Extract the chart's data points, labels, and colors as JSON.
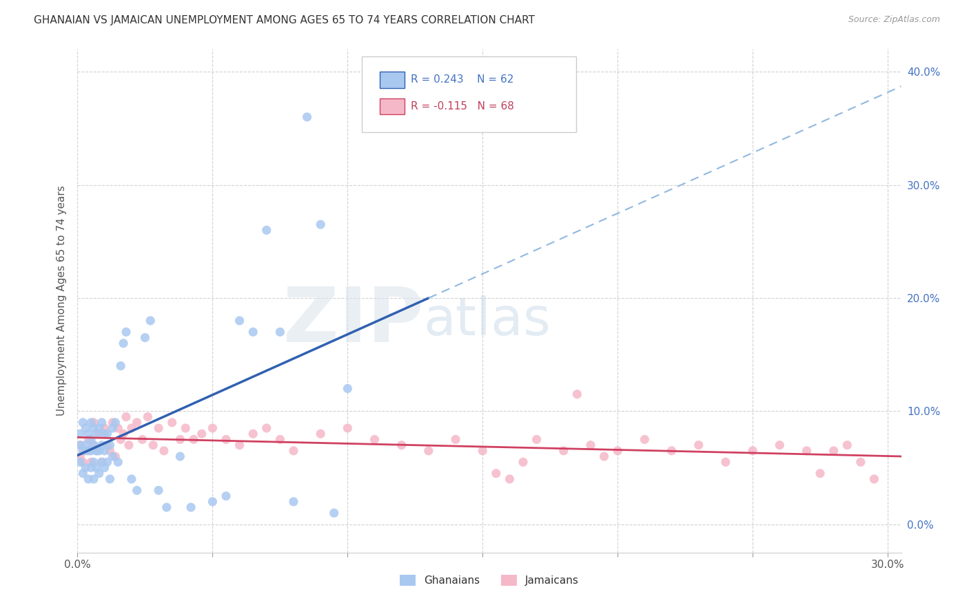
{
  "title": "GHANAIAN VS JAMAICAN UNEMPLOYMENT AMONG AGES 65 TO 74 YEARS CORRELATION CHART",
  "source": "Source: ZipAtlas.com",
  "ylabel": "Unemployment Among Ages 65 to 74 years",
  "xmin": 0.0,
  "xmax": 0.305,
  "ymin": -0.025,
  "ymax": 0.42,
  "r_ghanaian": 0.243,
  "n_ghanaian": 62,
  "r_jamaican": -0.115,
  "n_jamaican": 68,
  "color_ghanaian": "#a8c8f0",
  "color_jamaican": "#f5b8c8",
  "color_ghanaian_line": "#3060b0",
  "color_jamaican_line": "#d04060",
  "watermark_zip": "ZIP",
  "watermark_atlas": "atlas",
  "bg_color": "#ffffff",
  "grid_color": "#cccccc",
  "ghanaian_x": [
    0.001,
    0.001,
    0.001,
    0.002,
    0.002,
    0.002,
    0.003,
    0.003,
    0.003,
    0.004,
    0.004,
    0.004,
    0.005,
    0.005,
    0.005,
    0.005,
    0.006,
    0.006,
    0.006,
    0.006,
    0.007,
    0.007,
    0.007,
    0.008,
    0.008,
    0.008,
    0.009,
    0.009,
    0.009,
    0.01,
    0.01,
    0.01,
    0.011,
    0.011,
    0.012,
    0.012,
    0.013,
    0.013,
    0.014,
    0.015,
    0.016,
    0.017,
    0.018,
    0.02,
    0.022,
    0.025,
    0.027,
    0.03,
    0.033,
    0.038,
    0.042,
    0.05,
    0.055,
    0.06,
    0.065,
    0.07,
    0.075,
    0.08,
    0.085,
    0.09,
    0.095,
    0.1
  ],
  "ghanaian_y": [
    0.055,
    0.07,
    0.08,
    0.045,
    0.065,
    0.09,
    0.05,
    0.07,
    0.085,
    0.04,
    0.065,
    0.08,
    0.05,
    0.065,
    0.075,
    0.09,
    0.04,
    0.055,
    0.07,
    0.085,
    0.05,
    0.065,
    0.08,
    0.045,
    0.065,
    0.085,
    0.055,
    0.07,
    0.09,
    0.05,
    0.065,
    0.08,
    0.055,
    0.08,
    0.04,
    0.07,
    0.06,
    0.085,
    0.09,
    0.055,
    0.14,
    0.16,
    0.17,
    0.04,
    0.03,
    0.165,
    0.18,
    0.03,
    0.015,
    0.06,
    0.015,
    0.02,
    0.025,
    0.18,
    0.17,
    0.26,
    0.17,
    0.02,
    0.36,
    0.265,
    0.01,
    0.12
  ],
  "jamaican_x": [
    0.001,
    0.001,
    0.002,
    0.003,
    0.004,
    0.005,
    0.006,
    0.006,
    0.007,
    0.008,
    0.009,
    0.01,
    0.011,
    0.012,
    0.013,
    0.014,
    0.015,
    0.016,
    0.017,
    0.018,
    0.019,
    0.02,
    0.022,
    0.024,
    0.026,
    0.028,
    0.03,
    0.032,
    0.035,
    0.038,
    0.04,
    0.043,
    0.046,
    0.05,
    0.055,
    0.06,
    0.065,
    0.07,
    0.075,
    0.08,
    0.09,
    0.1,
    0.11,
    0.12,
    0.13,
    0.14,
    0.15,
    0.16,
    0.17,
    0.18,
    0.19,
    0.2,
    0.21,
    0.22,
    0.23,
    0.24,
    0.25,
    0.26,
    0.27,
    0.275,
    0.28,
    0.285,
    0.29,
    0.295,
    0.165,
    0.155,
    0.195,
    0.185
  ],
  "jamaican_y": [
    0.06,
    0.07,
    0.055,
    0.065,
    0.075,
    0.055,
    0.07,
    0.09,
    0.065,
    0.08,
    0.055,
    0.085,
    0.07,
    0.065,
    0.09,
    0.06,
    0.085,
    0.075,
    0.08,
    0.095,
    0.07,
    0.085,
    0.09,
    0.075,
    0.095,
    0.07,
    0.085,
    0.065,
    0.09,
    0.075,
    0.085,
    0.075,
    0.08,
    0.085,
    0.075,
    0.07,
    0.08,
    0.085,
    0.075,
    0.065,
    0.08,
    0.085,
    0.075,
    0.07,
    0.065,
    0.075,
    0.065,
    0.04,
    0.075,
    0.065,
    0.07,
    0.065,
    0.075,
    0.065,
    0.07,
    0.055,
    0.065,
    0.07,
    0.065,
    0.045,
    0.065,
    0.07,
    0.055,
    0.04,
    0.055,
    0.045,
    0.06,
    0.115
  ]
}
